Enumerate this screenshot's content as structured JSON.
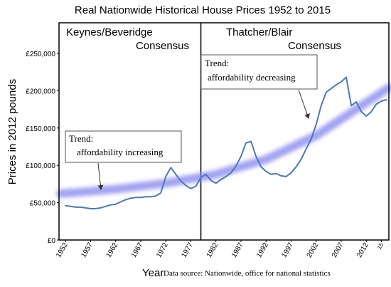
{
  "chart_data": {
    "type": "line",
    "title": "Real Nationwide Historical House  Prices 1952 to 2015",
    "ylabel": "Prices in 2012 pounds",
    "xlabel": "Year",
    "source": "Data source: Nationwide, office for national statistics",
    "eras": [
      {
        "line1": "Keynes/Beveridge",
        "line2": "Consensus"
      },
      {
        "line1": "Thatcher/Blair",
        "line2": "Consensus"
      }
    ],
    "divider_x": 1979,
    "annotations": [
      {
        "line1": "Trend:",
        "line2": "affordability increasing"
      },
      {
        "line1": "Trend:",
        "line2": "affordability decreasing"
      }
    ],
    "xlim": [
      1950.7,
      2016.5
    ],
    "ylim": [
      0,
      291000
    ],
    "xticks": [
      1952,
      1957,
      1962,
      1967,
      1972,
      1977,
      1982,
      1987,
      1992,
      1997,
      2002,
      2007,
      2012,
      {
        "value": 2015,
        "label": "15"
      }
    ],
    "yticks": [
      {
        "value": 0,
        "label": "£0"
      },
      {
        "value": 50000,
        "label": "£50,000"
      },
      {
        "value": 100000,
        "label": "£100,000"
      },
      {
        "value": 150000,
        "label": "£150,000"
      },
      {
        "value": 200000,
        "label": "£200,000"
      },
      {
        "value": 250000,
        "label": "£250,000"
      }
    ],
    "series": [
      {
        "color": "#4a7ab5",
        "x": [
          1952,
          1953,
          1954,
          1955,
          1956,
          1957,
          1958,
          1959,
          1960,
          1961,
          1962,
          1963,
          1964,
          1965,
          1966,
          1967,
          1968,
          1969,
          1970,
          1971,
          1972,
          1973,
          1974,
          1975,
          1976,
          1977,
          1978,
          1979,
          1980,
          1981,
          1982,
          1983,
          1984,
          1985,
          1986,
          1987,
          1988,
          1989,
          1990,
          1991,
          1992,
          1993,
          1994,
          1995,
          1996,
          1997,
          1998,
          1999,
          2000,
          2001,
          2002,
          2003,
          2004,
          2005,
          2006,
          2007,
          2008,
          2009,
          2010,
          2011,
          2012,
          2013,
          2014,
          2015,
          2016
        ],
        "values": [
          46000,
          45000,
          44000,
          44000,
          43000,
          42000,
          42000,
          43000,
          45000,
          47000,
          48000,
          51000,
          54000,
          56000,
          57000,
          57000,
          58000,
          58000,
          59000,
          63000,
          85000,
          97000,
          88000,
          79000,
          73000,
          69000,
          72000,
          84000,
          88000,
          80000,
          76000,
          81000,
          85000,
          90000,
          99000,
          112000,
          130000,
          132000,
          112000,
          98000,
          92000,
          88000,
          89000,
          86000,
          85000,
          90000,
          98000,
          108000,
          122000,
          135000,
          155000,
          180000,
          198000,
          203000,
          208000,
          212000,
          218000,
          180000,
          185000,
          172000,
          166000,
          172000,
          182000,
          186000,
          188000
        ]
      },
      {
        "color": "#8c8cf0",
        "x": [
          1951,
          1962,
          1972,
          1982,
          1992,
          2002,
          2016.5
        ],
        "values": [
          62000,
          68000,
          76000,
          88000,
          108000,
          140000,
          204000
        ]
      }
    ]
  }
}
